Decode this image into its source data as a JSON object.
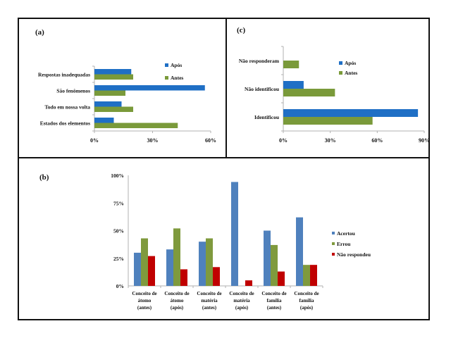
{
  "colors": {
    "apos": "#1f6fc5",
    "antes": "#7a9a3a",
    "acertou": "#4f81bd",
    "errou": "#7f9a3d",
    "nao_respondeu": "#c00000",
    "axis": "#b0b0b0"
  },
  "chart_data": [
    {
      "panel_label": "(a)",
      "type": "bar",
      "orientation": "horizontal",
      "categories": [
        "Respostas inadequadas",
        "São fenômenos",
        "Todo em nossa volta",
        "Estados dos elementos"
      ],
      "series": [
        {
          "name": "Após",
          "values": [
            19,
            57,
            14,
            10
          ]
        },
        {
          "name": "Antes",
          "values": [
            20,
            16,
            20,
            43
          ]
        }
      ],
      "xlim": [
        0,
        60
      ],
      "xticks": [
        "0%",
        "30%",
        "60%"
      ],
      "legend": "top-right",
      "grid": false
    },
    {
      "panel_label": "(c)",
      "type": "bar",
      "orientation": "horizontal",
      "categories": [
        "Não responderam",
        "Não identificou",
        "Identificou"
      ],
      "series": [
        {
          "name": "Após",
          "values": [
            0,
            13,
            86
          ]
        },
        {
          "name": "Antes",
          "values": [
            10,
            33,
            57
          ]
        }
      ],
      "xlim": [
        0,
        90
      ],
      "xticks": [
        "0%",
        "30%",
        "60%",
        "90%"
      ],
      "legend": "top-right",
      "grid": false
    },
    {
      "panel_label": "(b)",
      "type": "bar",
      "orientation": "vertical",
      "categories": [
        [
          "Conceito de",
          "átomo",
          "(antes)"
        ],
        [
          "Conceito de",
          "átomo",
          "(após)"
        ],
        [
          "Conceito de",
          "matéria",
          "(antes)"
        ],
        [
          "Conceito de",
          "matéria",
          "(após)"
        ],
        [
          "Conceito de",
          "família",
          "(antes)"
        ],
        [
          "Conceito de",
          "família",
          "(após)"
        ]
      ],
      "series": [
        {
          "name": "Acertou",
          "values": [
            30,
            33,
            40,
            94,
            50,
            62
          ]
        },
        {
          "name": "Errou",
          "values": [
            43,
            52,
            43,
            0,
            37,
            19
          ]
        },
        {
          "name": "Não respondeu",
          "values": [
            27,
            15,
            17,
            5,
            13,
            19
          ]
        }
      ],
      "ylim": [
        0,
        100
      ],
      "yticks": [
        "0%",
        "25%",
        "50%",
        "75%",
        "100%"
      ],
      "legend": "right",
      "grid": false
    }
  ]
}
